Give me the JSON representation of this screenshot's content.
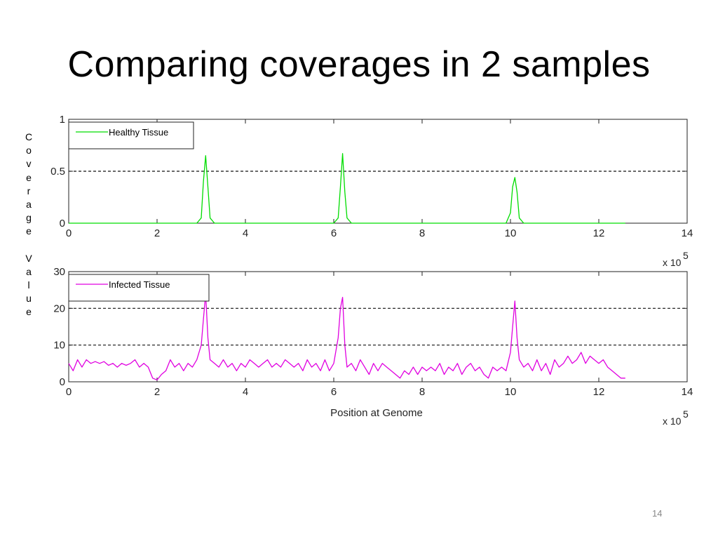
{
  "slide": {
    "title": "Comparing coverages in 2 samples",
    "side_label": "Coverage Value",
    "page_number": "14"
  },
  "chart_data": [
    {
      "type": "line",
      "panel": "top",
      "xlabel": "",
      "x_exponent_label": "x 10",
      "x_exponent_sup": "5",
      "xlim": [
        0,
        14
      ],
      "ylim": [
        0,
        1
      ],
      "xticks": [
        0,
        2,
        4,
        6,
        8,
        10,
        12,
        14
      ],
      "yticks": [
        0,
        0.5,
        1
      ],
      "ytick_labels": [
        "0",
        "0.5",
        "1"
      ],
      "reference_lines": [
        0.5
      ],
      "legend": {
        "placement": "top-left",
        "entries": [
          "Healthy Tissue"
        ]
      },
      "series": [
        {
          "name": "Healthy Tissue",
          "color": "#00dd00",
          "x": [
            0,
            2.9,
            3.0,
            3.05,
            3.1,
            3.15,
            3.2,
            3.3,
            6.0,
            6.1,
            6.15,
            6.2,
            6.25,
            6.3,
            6.4,
            9.9,
            10.0,
            10.05,
            10.1,
            10.15,
            10.2,
            10.3,
            12.6
          ],
          "y": [
            0,
            0,
            0.05,
            0.4,
            0.65,
            0.35,
            0.05,
            0,
            0,
            0.05,
            0.35,
            0.67,
            0.3,
            0.05,
            0,
            0,
            0.1,
            0.35,
            0.44,
            0.3,
            0.05,
            0,
            0
          ]
        }
      ]
    },
    {
      "type": "line",
      "panel": "bottom",
      "xlabel": "Position at Genome",
      "x_exponent_label": "x 10",
      "x_exponent_sup": "5",
      "xlim": [
        0,
        14
      ],
      "ylim": [
        0,
        30
      ],
      "xticks": [
        0,
        2,
        4,
        6,
        8,
        10,
        12,
        14
      ],
      "yticks": [
        0,
        10,
        20,
        30
      ],
      "ytick_labels": [
        "0",
        "10",
        "20",
        "30"
      ],
      "reference_lines": [
        10,
        20
      ],
      "legend": {
        "placement": "top-left",
        "entries": [
          "Infected Tissue"
        ]
      },
      "series": [
        {
          "name": "Infected Tissue",
          "color": "#e000e0",
          "x": [
            0,
            0.1,
            0.2,
            0.3,
            0.4,
            0.5,
            0.6,
            0.7,
            0.8,
            0.9,
            1.0,
            1.1,
            1.2,
            1.3,
            1.4,
            1.5,
            1.6,
            1.7,
            1.8,
            1.9,
            2.0,
            2.1,
            2.2,
            2.3,
            2.4,
            2.5,
            2.6,
            2.7,
            2.8,
            2.9,
            3.0,
            3.05,
            3.1,
            3.15,
            3.2,
            3.3,
            3.4,
            3.5,
            3.6,
            3.7,
            3.8,
            3.9,
            4.0,
            4.1,
            4.2,
            4.3,
            4.4,
            4.5,
            4.6,
            4.7,
            4.8,
            4.9,
            5.0,
            5.1,
            5.2,
            5.3,
            5.4,
            5.5,
            5.6,
            5.7,
            5.8,
            5.9,
            6.0,
            6.1,
            6.15,
            6.2,
            6.25,
            6.3,
            6.4,
            6.5,
            6.6,
            6.7,
            6.8,
            6.9,
            7.0,
            7.1,
            7.2,
            7.3,
            7.4,
            7.5,
            7.6,
            7.7,
            7.8,
            7.9,
            8.0,
            8.1,
            8.2,
            8.3,
            8.4,
            8.5,
            8.6,
            8.7,
            8.8,
            8.9,
            9.0,
            9.1,
            9.2,
            9.3,
            9.4,
            9.5,
            9.6,
            9.7,
            9.8,
            9.9,
            10.0,
            10.05,
            10.1,
            10.15,
            10.2,
            10.3,
            10.4,
            10.5,
            10.6,
            10.7,
            10.8,
            10.9,
            11.0,
            11.1,
            11.2,
            11.3,
            11.4,
            11.5,
            11.6,
            11.7,
            11.8,
            11.9,
            12.0,
            12.1,
            12.2,
            12.3,
            12.4,
            12.5,
            12.6
          ],
          "y": [
            5,
            3,
            6,
            4,
            6,
            5,
            5.5,
            5,
            5.5,
            4.5,
            5,
            4,
            5,
            4.5,
            5,
            6,
            4,
            5,
            4,
            1,
            0.5,
            2,
            3,
            6,
            4,
            5,
            3,
            5,
            4,
            6,
            10,
            17,
            24,
            12,
            6,
            5,
            4,
            6,
            4,
            5,
            3,
            5,
            4,
            6,
            5,
            4,
            5,
            6,
            4,
            5,
            4,
            6,
            5,
            4,
            5,
            3,
            6,
            4,
            5,
            3,
            6,
            3,
            5,
            12,
            20,
            23,
            10,
            4,
            5,
            3,
            6,
            4,
            2,
            5,
            3,
            5,
            4,
            3,
            2,
            1,
            3,
            2,
            4,
            2,
            4,
            3,
            4,
            3,
            5,
            2,
            4,
            3,
            5,
            2,
            4,
            5,
            3,
            4,
            2,
            1,
            4,
            3,
            4,
            3,
            8,
            15,
            22,
            12,
            6,
            4,
            5,
            3,
            6,
            3,
            5,
            2,
            6,
            4,
            5,
            7,
            5,
            6,
            8,
            5,
            7,
            6,
            5,
            6,
            4,
            3,
            2,
            1,
            1
          ]
        }
      ]
    }
  ]
}
